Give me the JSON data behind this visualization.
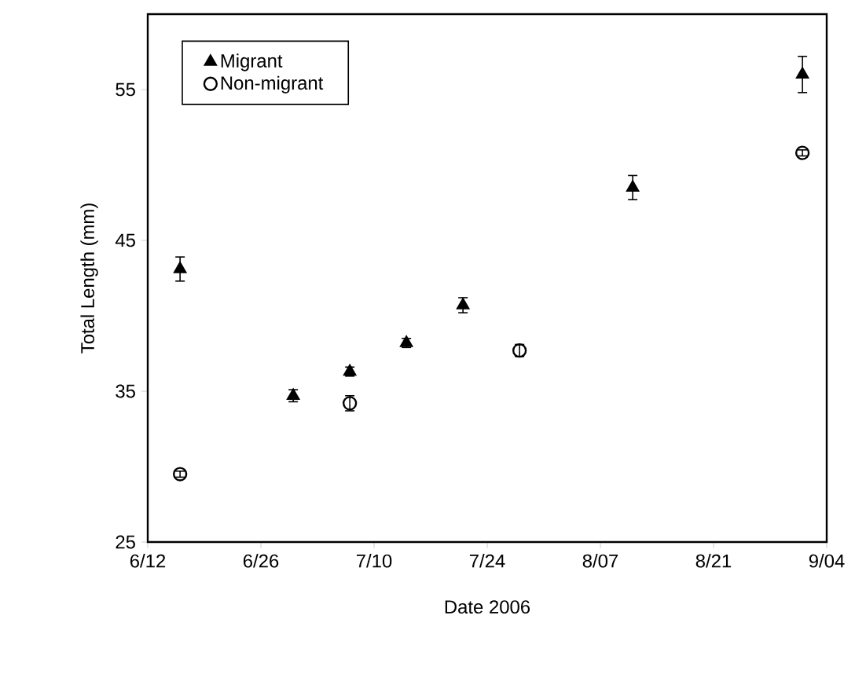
{
  "chart_data": {
    "type": "scatter",
    "xlabel": "Date 2006",
    "ylabel": "Total Length (mm)",
    "xlim": [
      "2006-06-12",
      "2006-09-04"
    ],
    "ylim": [
      25,
      60
    ],
    "xticks": [
      {
        "value": "2006-06-12",
        "label": "6/12"
      },
      {
        "value": "2006-06-26",
        "label": "6/26"
      },
      {
        "value": "2006-07-10",
        "label": "7/10"
      },
      {
        "value": "2006-07-24",
        "label": "7/24"
      },
      {
        "value": "2006-08-07",
        "label": "8/07"
      },
      {
        "value": "2006-08-21",
        "label": "8/21"
      },
      {
        "value": "2006-09-04",
        "label": "9/04"
      }
    ],
    "yticks": [
      25,
      35,
      45,
      55
    ],
    "grid": false,
    "legend": "top left",
    "series": [
      {
        "name": "Migrant",
        "color": "#000000",
        "marker": "triangle",
        "x": [
          "2006-06-16",
          "2006-06-30",
          "2006-07-07",
          "2006-07-14",
          "2006-07-21",
          "2006-08-11",
          "2006-09-01"
        ],
        "values": [
          43.1,
          34.7,
          36.3,
          38.2,
          40.7,
          48.5,
          56.0
        ],
        "errors": [
          0.8,
          0.4,
          0.3,
          0.3,
          0.5,
          0.8,
          1.2
        ]
      },
      {
        "name": "Non-migrant",
        "color": "#000000",
        "marker": "circle",
        "x": [
          "2006-06-16",
          "2006-07-07",
          "2006-07-28",
          "2006-09-01"
        ],
        "values": [
          29.5,
          34.2,
          37.7,
          50.8
        ],
        "errors": [
          0.2,
          0.5,
          0.4,
          0.2
        ]
      }
    ]
  }
}
